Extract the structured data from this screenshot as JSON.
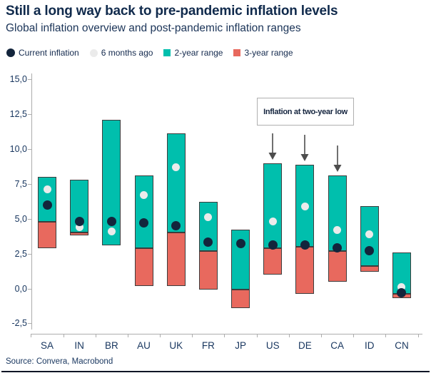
{
  "header": {
    "title": "Still a long way back to pre-pandemic inflation levels",
    "subtitle": "Global inflation overview and post-pandemic inflation ranges"
  },
  "legend": {
    "items": [
      {
        "label": "Current inflation",
        "series": "Current inflation",
        "marker": "circle"
      },
      {
        "label": "6 months ago",
        "series": "6 months ago",
        "marker": "circle"
      },
      {
        "label": "2-year range",
        "series": "2-year range",
        "marker": "square"
      },
      {
        "label": "3-year range",
        "series": "3-year range",
        "marker": "square"
      }
    ]
  },
  "chart_data": {
    "type": "bar",
    "subtype": "floating-range-bars-with-point-markers",
    "title": "Still a long way back to pre-pandemic inflation levels",
    "subtitle": "Global inflation overview and post-pandemic inflation ranges",
    "unit": "percent",
    "categories": [
      "SA",
      "IN",
      "BR",
      "AU",
      "UK",
      "FR",
      "JP",
      "US",
      "DE",
      "CA",
      "ID",
      "CN"
    ],
    "series": [
      {
        "name": "2-year range",
        "type": "range",
        "color": "#00BFAD",
        "ranges": [
          [
            4.8,
            8.0
          ],
          [
            4.0,
            7.8
          ],
          [
            3.1,
            12.1
          ],
          [
            2.9,
            8.1
          ],
          [
            4.0,
            11.1
          ],
          [
            2.7,
            6.2
          ],
          [
            -0.1,
            4.2
          ],
          [
            2.9,
            9.0
          ],
          [
            3.0,
            8.9
          ],
          [
            2.7,
            8.1
          ],
          [
            1.6,
            5.9
          ],
          [
            -0.4,
            2.6
          ]
        ]
      },
      {
        "name": "3-year range",
        "type": "range",
        "color": "#E8695E",
        "ranges": [
          [
            2.9,
            4.8
          ],
          [
            3.8,
            4.0
          ],
          null,
          [
            0.2,
            2.9
          ],
          [
            0.2,
            4.0
          ],
          [
            -0.1,
            2.7
          ],
          [
            -1.4,
            -0.1
          ],
          [
            1.0,
            2.9
          ],
          [
            -0.4,
            3.0
          ],
          [
            0.5,
            2.7
          ],
          [
            1.2,
            1.6
          ],
          [
            -0.7,
            -0.4
          ]
        ]
      },
      {
        "name": "6 months ago",
        "type": "point",
        "color": "#EBEBEB",
        "values": [
          7.1,
          4.4,
          4.1,
          6.7,
          8.7,
          5.1,
          null,
          4.8,
          5.9,
          4.2,
          3.9,
          0.1
        ]
      },
      {
        "name": "Current inflation",
        "type": "point",
        "color": "#13253C",
        "values": [
          6.0,
          4.8,
          4.8,
          4.7,
          4.5,
          3.3,
          3.2,
          3.1,
          3.1,
          2.9,
          2.7,
          -0.3
        ]
      }
    ],
    "y_axis": {
      "ticks": [
        15,
        12.5,
        10,
        7.5,
        5,
        2.5,
        0,
        -2.5
      ],
      "tick_labels": [
        "15,0",
        "12,5",
        "10,0",
        "7,5",
        "5,0",
        "2,5",
        "0,0",
        "-2,5"
      ],
      "range_shown": [
        -3.3,
        15.4
      ],
      "decimal_separator": ","
    },
    "annotation": {
      "text": "Inflation at two-year low",
      "arrow_categories": [
        "US",
        "DE",
        "CA"
      ]
    },
    "grid": false,
    "legend_position": "top"
  },
  "footer": {
    "source": "Source: Convera, Macrobond"
  },
  "colors": {
    "title_text": "#102A4C",
    "axis_text": "#17355E",
    "axis_line": "#ADADAD",
    "bar_border": "#3D3D3D",
    "teal_range": "#00BFAD",
    "red_range": "#E8695E",
    "current_dot": "#13253C",
    "six_months_dot": "#EBEBEB",
    "annotation_border": "#B0B0B0",
    "arrow": "#4D4D4D",
    "bottom_rule": "#0B1526"
  }
}
